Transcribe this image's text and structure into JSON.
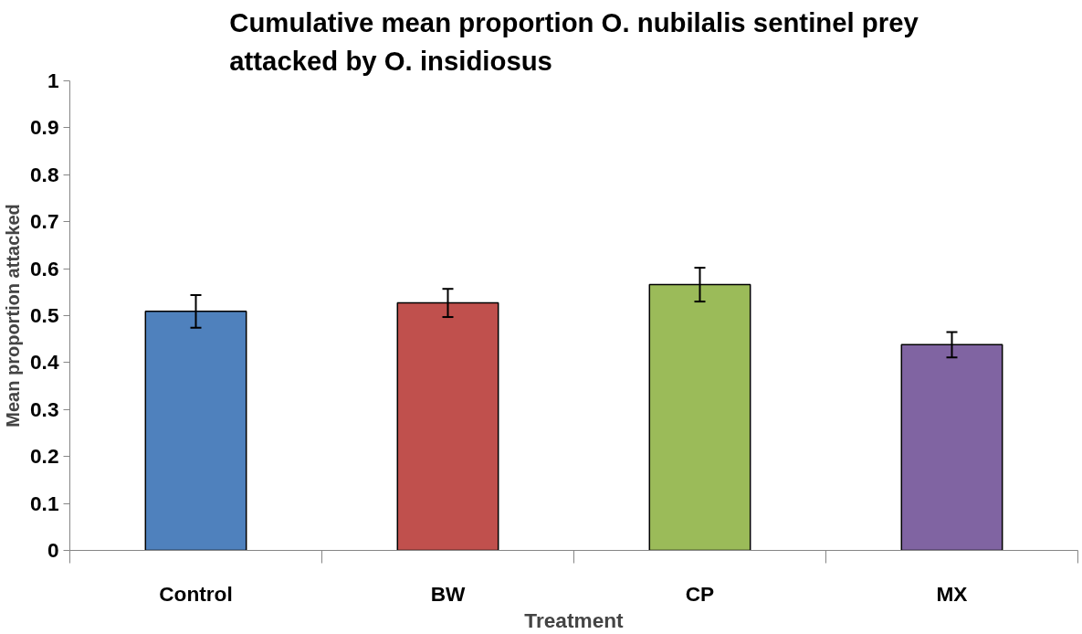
{
  "chart_data": {
    "type": "bar",
    "title": "Cumulative mean proportion O. nubilalis sentinel prey\nattacked by O. insidiosus",
    "xlabel": "Treatment",
    "ylabel": "Mean proportion attacked",
    "categories": [
      "Control",
      "BW",
      "CP",
      "MX"
    ],
    "values": [
      0.509,
      0.527,
      0.566,
      0.438
    ],
    "errors": [
      0.035,
      0.03,
      0.036,
      0.027
    ],
    "colors": [
      "#4f81bd",
      "#c0504d",
      "#9bbb59",
      "#8064a2"
    ],
    "ylim": [
      0,
      1
    ],
    "yticks": [
      0,
      0.1,
      0.2,
      0.3,
      0.4,
      0.5,
      0.6,
      0.7,
      0.8,
      0.9,
      1
    ],
    "grid": false
  }
}
